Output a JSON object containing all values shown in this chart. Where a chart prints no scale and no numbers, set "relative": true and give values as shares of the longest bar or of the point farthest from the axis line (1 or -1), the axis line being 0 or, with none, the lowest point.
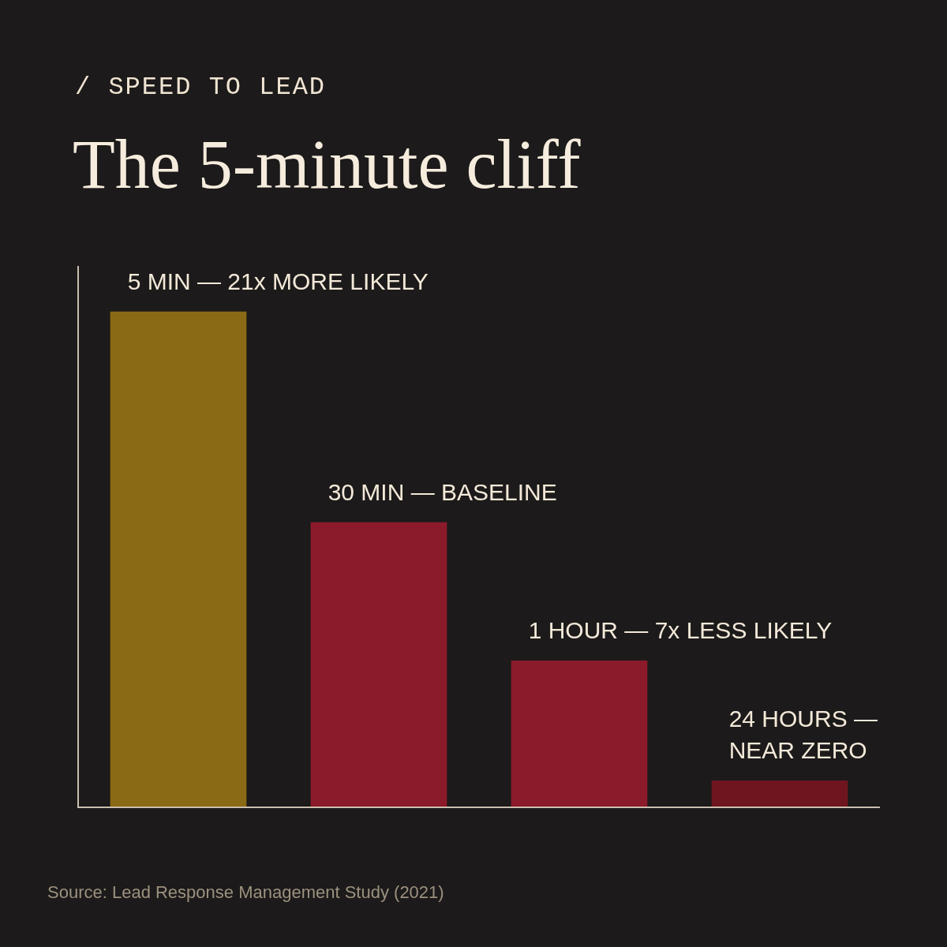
{
  "chart_data": {
    "type": "bar",
    "subtitle": "/ SPEED TO LEAD",
    "title": "The 5-minute cliff",
    "categories": [
      null,
      null,
      null,
      null
    ],
    "values": [
      1,
      0.575,
      0.296,
      0.054
    ],
    "colors": [
      "#8a6a14",
      "#8b1a2a",
      "#8b1a2a",
      "#6e1520"
    ],
    "relative": true,
    "annotations": [
      "5 MIN — 21x MORE LIKELY",
      "30 MIN — BASELINE",
      "1 HOUR — 7x LESS LIKELY",
      "24 HOURS — NEAR ZERO",
      "Source: Lead Response Management Study (2021)"
    ]
  }
}
